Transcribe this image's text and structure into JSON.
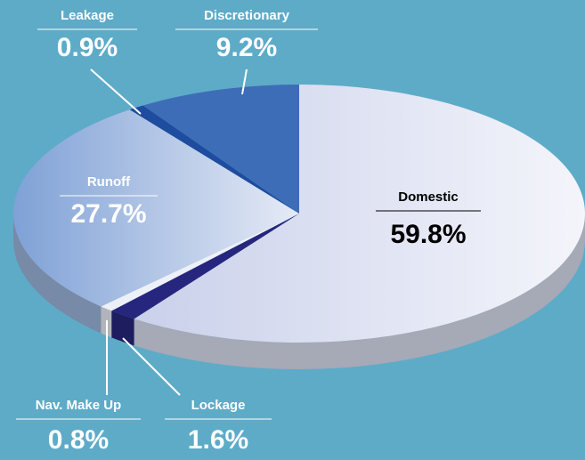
{
  "chart_data": {
    "type": "pie",
    "categories": [
      "Domestic",
      "Lockage",
      "Nav. Make Up",
      "Runoff",
      "Leakage",
      "Discretionary"
    ],
    "values": [
      59.8,
      1.6,
      0.8,
      27.7,
      0.9,
      9.2
    ],
    "value_labels": [
      "59.8%",
      "1.6%",
      "0.8%",
      "27.7%",
      "0.9%",
      "9.2%"
    ],
    "colors": [
      "#dde1f2",
      "#26267e",
      "#eef0f8",
      "#9fb8df",
      "#1e4c9e",
      "#3e6db8"
    ]
  }
}
